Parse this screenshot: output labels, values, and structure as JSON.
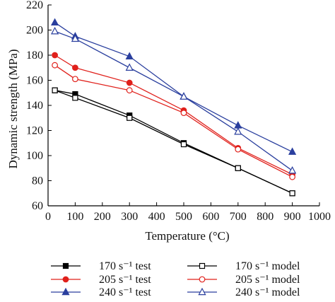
{
  "chart_data": {
    "type": "line",
    "xlabel": "Temperature (°C)",
    "ylabel": "Dynamic strength (MPa)",
    "xlim": [
      0,
      1000
    ],
    "ylim": [
      60,
      220
    ],
    "xticks": [
      "0",
      "100",
      "200",
      "300",
      "400",
      "500",
      "600",
      "700",
      "800",
      "900",
      "1000"
    ],
    "yticks": [
      "60",
      "80",
      "100",
      "120",
      "140",
      "160",
      "180",
      "200",
      "220"
    ],
    "grid": false,
    "legend_position": "bottom",
    "x": [
      25,
      100,
      300,
      500,
      700,
      900
    ],
    "series": [
      {
        "name": "170 s⁻¹ test",
        "color": "#000000",
        "marker": "square",
        "filled": true,
        "legend_col": 0,
        "legend_row": 0,
        "values": [
          152,
          149,
          132,
          110,
          90,
          70
        ]
      },
      {
        "name": "205 s⁻¹ test",
        "color": "#e0201b",
        "marker": "circle",
        "filled": true,
        "legend_col": 0,
        "legend_row": 1,
        "values": [
          180,
          170,
          158,
          136,
          106,
          85
        ]
      },
      {
        "name": "240 s⁻¹ test",
        "color": "#2a3f9e",
        "marker": "triangle",
        "filled": true,
        "legend_col": 0,
        "legend_row": 2,
        "values": [
          206,
          195,
          179,
          147,
          124,
          103
        ]
      },
      {
        "name": "170 s⁻¹ model",
        "color": "#000000",
        "marker": "square",
        "filled": false,
        "legend_col": 1,
        "legend_row": 0,
        "values": [
          152,
          146,
          130,
          109,
          90,
          70
        ]
      },
      {
        "name": "205 s⁻¹ model",
        "color": "#e0201b",
        "marker": "circle",
        "filled": false,
        "legend_col": 1,
        "legend_row": 1,
        "values": [
          172,
          161,
          152,
          134,
          105,
          83
        ]
      },
      {
        "name": "240 s⁻¹ model",
        "color": "#2a3f9e",
        "marker": "triangle",
        "filled": false,
        "legend_col": 1,
        "legend_row": 2,
        "values": [
          199,
          193,
          170,
          147,
          119,
          88
        ]
      }
    ]
  }
}
